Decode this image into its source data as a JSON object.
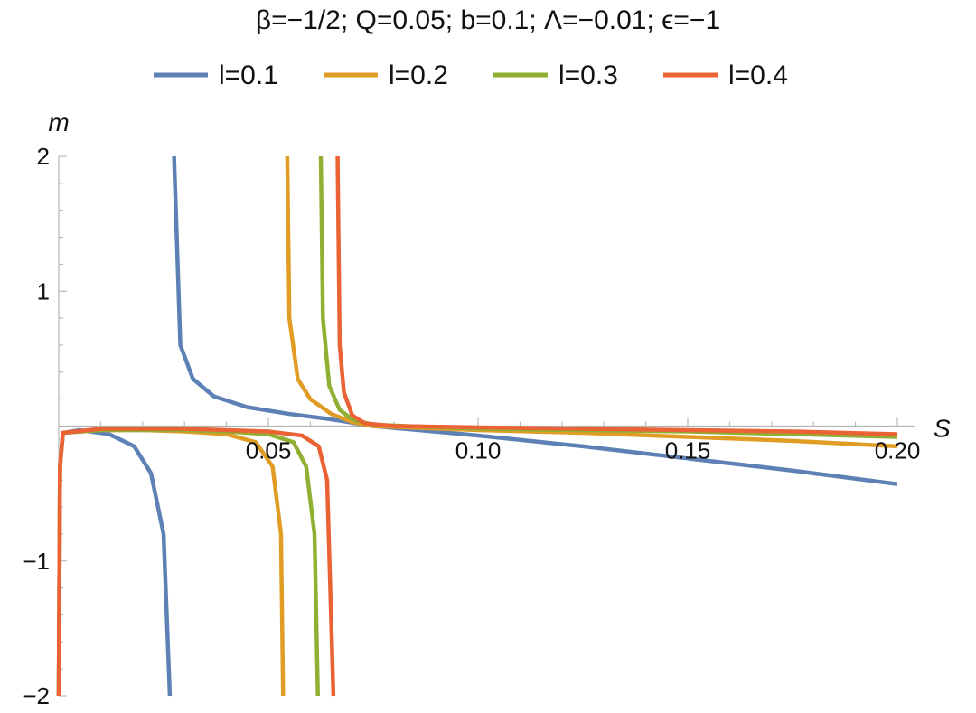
{
  "chart_data": {
    "type": "line",
    "title": "β=−1/2; Q=0.05; b=0.1; Λ=−0.01; ϵ=−1",
    "xlabel": "S",
    "ylabel": "m",
    "xlim": [
      0.0,
      0.2
    ],
    "ylim": [
      -2,
      2
    ],
    "x_ticks": [
      {
        "value": 0.05,
        "label": "0.05"
      },
      {
        "value": 0.1,
        "label": "0.10"
      },
      {
        "value": 0.15,
        "label": "0.15"
      },
      {
        "value": 0.2,
        "label": "0.20"
      }
    ],
    "y_ticks": [
      {
        "value": 2,
        "label": "2"
      },
      {
        "value": 1,
        "label": "1"
      },
      {
        "value": -1,
        "label": "−1"
      },
      {
        "value": -2,
        "label": "−2"
      }
    ],
    "grid": false,
    "legend_position": "top",
    "series": [
      {
        "name": "l=0.1",
        "color": "#5E81B5",
        "pole": 0.027,
        "points": [
          [
            0.0,
            -2.0
          ],
          [
            0.0003,
            -0.3
          ],
          [
            0.001,
            -0.05
          ],
          [
            0.005,
            -0.03
          ],
          [
            0.012,
            -0.06
          ],
          [
            0.018,
            -0.15
          ],
          [
            0.022,
            -0.35
          ],
          [
            0.025,
            -0.8
          ],
          [
            0.0265,
            -2.0
          ],
          [
            0.0275,
            2.0
          ],
          [
            0.029,
            0.6
          ],
          [
            0.032,
            0.35
          ],
          [
            0.037,
            0.22
          ],
          [
            0.045,
            0.14
          ],
          [
            0.055,
            0.09
          ],
          [
            0.065,
            0.05
          ],
          [
            0.075,
            0.0
          ],
          [
            0.1,
            -0.07
          ],
          [
            0.125,
            -0.15
          ],
          [
            0.15,
            -0.24
          ],
          [
            0.175,
            -0.33
          ],
          [
            0.2,
            -0.43
          ]
        ]
      },
      {
        "name": "l=0.2",
        "color": "#E19C24",
        "pole": 0.054,
        "points": [
          [
            0.0,
            -2.0
          ],
          [
            0.0003,
            -0.3
          ],
          [
            0.001,
            -0.05
          ],
          [
            0.01,
            -0.03
          ],
          [
            0.02,
            -0.03
          ],
          [
            0.03,
            -0.04
          ],
          [
            0.04,
            -0.06
          ],
          [
            0.047,
            -0.12
          ],
          [
            0.051,
            -0.3
          ],
          [
            0.053,
            -0.8
          ],
          [
            0.0535,
            -2.0
          ],
          [
            0.0545,
            2.0
          ],
          [
            0.055,
            0.8
          ],
          [
            0.057,
            0.35
          ],
          [
            0.06,
            0.2
          ],
          [
            0.065,
            0.09
          ],
          [
            0.07,
            0.03
          ],
          [
            0.075,
            0.0
          ],
          [
            0.1,
            -0.03
          ],
          [
            0.125,
            -0.05
          ],
          [
            0.15,
            -0.08
          ],
          [
            0.175,
            -0.11
          ],
          [
            0.2,
            -0.15
          ]
        ]
      },
      {
        "name": "l=0.3",
        "color": "#8FB032",
        "pole": 0.062,
        "points": [
          [
            0.0,
            -2.0
          ],
          [
            0.0003,
            -0.3
          ],
          [
            0.001,
            -0.05
          ],
          [
            0.01,
            -0.03
          ],
          [
            0.02,
            -0.03
          ],
          [
            0.03,
            -0.03
          ],
          [
            0.04,
            -0.04
          ],
          [
            0.05,
            -0.06
          ],
          [
            0.056,
            -0.12
          ],
          [
            0.059,
            -0.3
          ],
          [
            0.061,
            -0.8
          ],
          [
            0.0618,
            -2.0
          ],
          [
            0.0625,
            2.0
          ],
          [
            0.063,
            0.8
          ],
          [
            0.0645,
            0.3
          ],
          [
            0.067,
            0.12
          ],
          [
            0.07,
            0.05
          ],
          [
            0.075,
            0.01
          ],
          [
            0.1,
            -0.02
          ],
          [
            0.125,
            -0.03
          ],
          [
            0.15,
            -0.04
          ],
          [
            0.175,
            -0.06
          ],
          [
            0.2,
            -0.08
          ]
        ]
      },
      {
        "name": "l=0.4",
        "color": "#EB6235",
        "pole": 0.066,
        "points": [
          [
            0.0,
            -2.0
          ],
          [
            0.0003,
            -0.3
          ],
          [
            0.001,
            -0.05
          ],
          [
            0.01,
            -0.02
          ],
          [
            0.02,
            -0.02
          ],
          [
            0.03,
            -0.02
          ],
          [
            0.04,
            -0.03
          ],
          [
            0.05,
            -0.04
          ],
          [
            0.058,
            -0.07
          ],
          [
            0.062,
            -0.15
          ],
          [
            0.064,
            -0.4
          ],
          [
            0.0655,
            -2.0
          ],
          [
            0.0665,
            2.0
          ],
          [
            0.067,
            0.6
          ],
          [
            0.068,
            0.25
          ],
          [
            0.07,
            0.08
          ],
          [
            0.073,
            0.02
          ],
          [
            0.08,
            0.0
          ],
          [
            0.1,
            -0.01
          ],
          [
            0.125,
            -0.02
          ],
          [
            0.15,
            -0.03
          ],
          [
            0.175,
            -0.04
          ],
          [
            0.2,
            -0.06
          ]
        ]
      }
    ]
  }
}
